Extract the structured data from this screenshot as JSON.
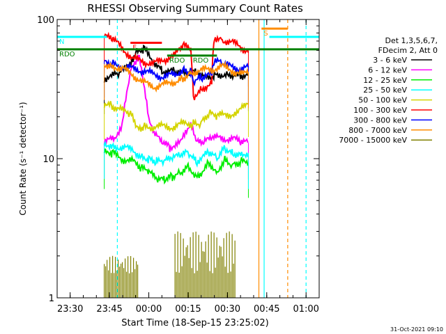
{
  "chart_data": {
    "type": "line",
    "title": "RHESSI Observing Summary Count Rates",
    "xlabel": "Start Time (18-Sep-15 23:25:02)",
    "ylabel": "Count Rate (s⁻¹ detector⁻¹)",
    "y_scale": "log",
    "ylim": [
      1,
      100
    ],
    "xlim": [
      "23:25:02",
      "01:05:00"
    ],
    "x_ticks": [
      "23:30",
      "23:45",
      "00:00",
      "00:15",
      "00:30",
      "00:45",
      "01:00"
    ],
    "y_ticks": [
      "1",
      "10",
      "100"
    ],
    "legend": {
      "position": "right",
      "header": [
        "Det 1,3,5,6,7,",
        "FDecim 2, Att 0"
      ],
      "entries": [
        {
          "label": "3 - 6 keV",
          "color": "#000000"
        },
        {
          "label": "6 - 12 keV",
          "color": "#ff00ff"
        },
        {
          "label": "12 - 25 keV",
          "color": "#00ee00"
        },
        {
          "label": "25 - 50 keV",
          "color": "#00ffff"
        },
        {
          "label": "50 - 100 keV",
          "color": "#d4d400"
        },
        {
          "label": "100 - 300 keV",
          "color": "#ff0000"
        },
        {
          "label": "300 - 800 keV",
          "color": "#0000ff"
        },
        {
          "label": "800 - 7000 keV",
          "color": "#ff8c00"
        },
        {
          "label": "7000 - 15000 keV",
          "color": "#808000"
        }
      ]
    },
    "series": [
      {
        "name": "3 - 6 keV",
        "color": "#000000",
        "x": [
          "23:43",
          "23:48",
          "23:52",
          "23:55",
          "23:58",
          "00:02",
          "00:05",
          "00:10",
          "00:15",
          "00:18",
          "00:20",
          "00:25",
          "00:30",
          "00:35",
          "00:38"
        ],
        "y": [
          38,
          40,
          45,
          58,
          62,
          50,
          43,
          42,
          40,
          42,
          38,
          40,
          41,
          40,
          40
        ]
      },
      {
        "name": "6 - 12 keV",
        "color": "#ff00ff",
        "x": [
          "23:43",
          "23:47",
          "23:50",
          "23:53",
          "23:56",
          "23:58",
          "00:00",
          "00:02",
          "00:05",
          "00:08",
          "00:10",
          "00:12",
          "00:14",
          "00:16",
          "00:18",
          "00:21",
          "00:24",
          "00:28",
          "00:32",
          "00:35",
          "00:38"
        ],
        "y": [
          13,
          14,
          18,
          42,
          55,
          35,
          20,
          15,
          13,
          12,
          12,
          13,
          16,
          18,
          13,
          13,
          14,
          14,
          14,
          13,
          13
        ]
      },
      {
        "name": "12 - 25 keV",
        "color": "#00ee00",
        "x": [
          "23:43",
          "23:46",
          "23:50",
          "23:54",
          "23:57",
          "00:00",
          "00:03",
          "00:06",
          "00:09",
          "00:12",
          "00:15",
          "00:18",
          "00:20",
          "00:23",
          "00:26",
          "00:29",
          "00:32",
          "00:35",
          "00:38"
        ],
        "y": [
          11,
          11,
          10,
          9.5,
          8.5,
          8,
          7,
          7,
          7.5,
          8,
          9,
          7.5,
          8,
          9.5,
          8,
          10,
          9,
          9.5,
          9.5
        ]
      },
      {
        "name": "25 - 50 keV",
        "color": "#00ffff",
        "x": [
          "23:43",
          "23:46",
          "23:50",
          "23:54",
          "23:57",
          "00:00",
          "00:03",
          "00:06",
          "00:09",
          "00:12",
          "00:15",
          "00:18",
          "00:20",
          "00:23",
          "00:26",
          "00:29",
          "00:32",
          "00:35",
          "00:38"
        ],
        "y": [
          13,
          12.5,
          12,
          11.5,
          10.5,
          10,
          9.5,
          9.5,
          10,
          10.5,
          11,
          9.5,
          10,
          11,
          10,
          12,
          11,
          11,
          11
        ]
      },
      {
        "name": "50 - 100 keV",
        "color": "#d4d400",
        "x": [
          "23:43",
          "23:46",
          "23:50",
          "23:53",
          "23:55",
          "23:58",
          "00:02",
          "00:06",
          "00:10",
          "00:14",
          "00:17",
          "00:20",
          "00:23",
          "00:26",
          "00:30",
          "00:34",
          "00:38"
        ],
        "y": [
          25,
          24,
          22,
          21,
          17,
          17,
          17,
          17,
          17,
          18,
          18,
          18,
          21,
          20,
          21,
          21,
          26
        ]
      },
      {
        "name": "100 - 300 keV",
        "color": "#ff0000",
        "x": [
          "23:43",
          "23:46",
          "23:50",
          "23:54",
          "23:58",
          "00:02",
          "00:06",
          "00:10",
          "00:13",
          "00:16",
          "00:17",
          "00:20",
          "00:24",
          "00:25",
          "00:28",
          "00:32",
          "00:36",
          "00:38"
        ],
        "y": [
          75,
          72,
          62,
          52,
          50,
          48,
          52,
          55,
          65,
          60,
          28,
          32,
          35,
          75,
          72,
          68,
          62,
          60
        ]
      },
      {
        "name": "300 - 800 keV",
        "color": "#0000ff",
        "x": [
          "23:43",
          "23:46",
          "23:50",
          "23:54",
          "23:58",
          "00:02",
          "00:06",
          "00:10",
          "00:13",
          "00:16",
          "00:17",
          "00:20",
          "00:24",
          "00:25",
          "00:28",
          "00:32",
          "00:36",
          "00:38"
        ],
        "y": [
          50,
          48,
          46,
          44,
          43,
          40,
          39,
          40,
          44,
          42,
          35,
          38,
          40,
          50,
          48,
          45,
          45,
          45
        ]
      },
      {
        "name": "800 - 7000 keV",
        "color": "#ff8c00",
        "x": [
          "23:43",
          "23:46",
          "23:50",
          "23:54",
          "23:58",
          "00:02",
          "00:06",
          "00:10",
          "00:13",
          "00:16",
          "00:20",
          "00:24",
          "00:28",
          "00:32",
          "00:36",
          "00:38"
        ],
        "y": [
          48,
          47,
          44,
          40,
          35,
          33,
          34,
          36,
          38,
          42,
          43,
          44,
          46,
          43,
          40,
          42
        ]
      }
    ],
    "bursts": {
      "name": "7000 - 15000 keV",
      "color": "#808000",
      "floor": 1,
      "segments": [
        {
          "x0": "23:43",
          "x1": "23:56",
          "ymin": 1.5,
          "ymax": 2
        },
        {
          "x0": "00:10",
          "x1": "00:33",
          "ymin": 1.5,
          "ymax": 3
        }
      ]
    },
    "flag_bars": [
      {
        "label": "N",
        "color": "#00ffff",
        "x0": "23:25:02",
        "x1": "23:44",
        "y": 75
      },
      {
        "label": "F",
        "color": "#ff0000",
        "x0": "23:53",
        "x1": "00:05",
        "y": 68
      },
      {
        "label": "RDO",
        "color": "#008000",
        "x0": "23:25:02",
        "x1": "01:05:00",
        "y": 61
      },
      {
        "label": "RDO",
        "color": "#008000",
        "x0": "00:07",
        "x1": "00:16",
        "y": 55
      },
      {
        "label": "RDO",
        "color": "#008000",
        "x0": "00:16",
        "x1": "00:26",
        "y": 55
      },
      {
        "label": "S",
        "color": "#ff8c00",
        "x0": "00:43",
        "x1": "00:53",
        "y": 86
      },
      {
        "label": "",
        "color": "#00ffff",
        "x0": "00:46",
        "x1": "01:05:00",
        "y": 75
      }
    ],
    "vlines": [
      {
        "x": "23:48",
        "color": "#00ffff",
        "dash": true
      },
      {
        "x": "00:42",
        "color": "#ff8c00",
        "dash": false
      },
      {
        "x": "00:44",
        "color": "#00ffff",
        "dash": false
      },
      {
        "x": "00:53",
        "color": "#ff8c00",
        "dash": true
      },
      {
        "x": "00:60",
        "color": "#00ffff",
        "dash": true
      }
    ],
    "grid": false
  },
  "timestamp": "31-Oct-2021 09:10"
}
